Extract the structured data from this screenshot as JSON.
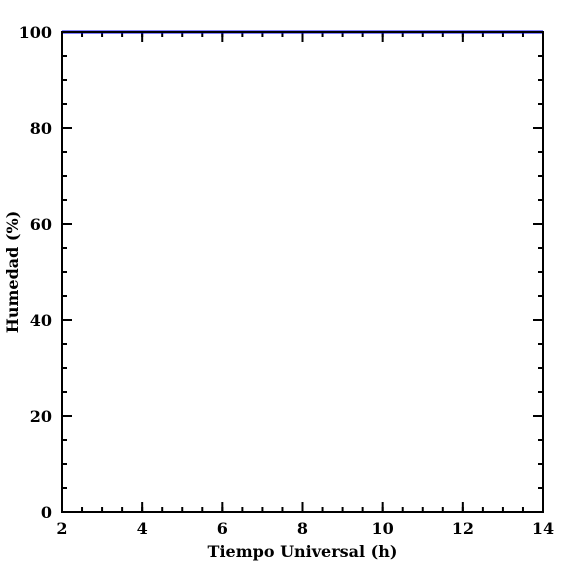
{
  "chart_data": {
    "type": "line",
    "xlabel": "Tiempo Universal (h)",
    "ylabel": "Humedad (%)",
    "xlim": [
      2,
      14
    ],
    "ylim": [
      0,
      100
    ],
    "x_ticks": [
      2,
      4,
      6,
      8,
      10,
      12,
      14
    ],
    "y_ticks": [
      0,
      20,
      40,
      60,
      80,
      100
    ],
    "x_minor_step": 0.5,
    "y_minor_step": 5,
    "grid": false,
    "series": [
      {
        "color": "#0000ff",
        "x": [
          2,
          3,
          4,
          5,
          6,
          7,
          8,
          9,
          10,
          11,
          12,
          13,
          14
        ],
        "y": [
          100,
          100,
          100,
          100,
          100,
          100,
          100,
          100,
          100,
          100,
          100,
          100,
          100
        ]
      }
    ]
  }
}
